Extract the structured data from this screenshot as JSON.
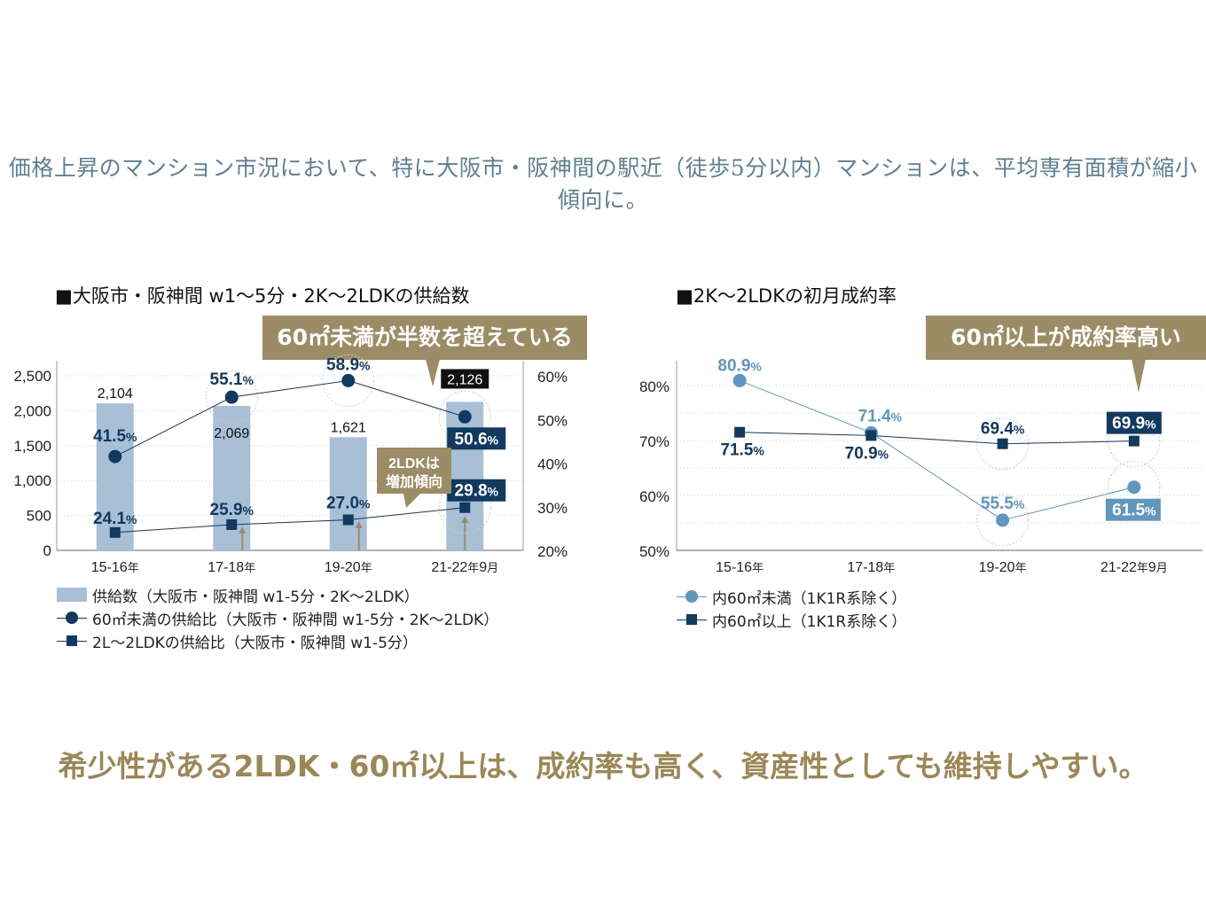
{
  "headline": "価格上昇のマンション市況において、特に大阪市・阪神間の駅近（徒歩5分以内）マンションは、平均専有面積が縮小傾向に。",
  "conclusion": "希少性がある2LDK・60㎡以上は、成約率も高く、資産性としても維持しやすい。",
  "colors": {
    "gold": "#9c8c66",
    "navy": "#12395f",
    "light_blue": "#5f97bf",
    "bar": "#a8bfd6",
    "headline": "#5e7f93"
  },
  "chart1": {
    "title": "■大阪市・阪神間 w1〜5分・2K〜2LDKの供給数",
    "callout": "60㎡未満が半数を超えている",
    "callout2": [
      "2LDKは",
      "増加傾向"
    ],
    "legend": [
      "供給数（大阪市・阪神間 w1-5分・2K〜2LDK）",
      "60㎡未満の供給比（大阪市・阪神間 w1-5分・2K〜2LDK）",
      "2L〜2LDKの供給比（大阪市・阪神間 w1-5分）"
    ]
  },
  "chart2": {
    "title": "■2K〜2LDKの初月成約率",
    "callout": "60㎡以上が成約率高い",
    "legend": [
      "内60㎡未満（1K1R系除く）",
      "内60㎡以上（1K1R系除く）"
    ]
  },
  "chart_data": [
    {
      "type": "bar",
      "categories": [
        "15-16年",
        "17-18年",
        "19-20年",
        "21-22年9月"
      ],
      "series": [
        {
          "name": "供給数（大阪市・阪神間 w1-5分・2K〜2LDK）",
          "axis": "left",
          "values": [
            2104,
            2069,
            1621,
            2126
          ],
          "labels": [
            "2,104",
            "2,069",
            "1,621",
            "2,126"
          ]
        },
        {
          "name": "60㎡未満の供給比（大阪市・阪神間 w1-5分・2K〜2LDK）",
          "type": "line",
          "axis": "right",
          "values": [
            41.5,
            55.1,
            58.9,
            50.6
          ]
        },
        {
          "name": "2L〜2LDKの供給比（大阪市・阪神間 w1-5分）",
          "type": "line",
          "axis": "right",
          "values": [
            24.1,
            25.9,
            27.0,
            29.8
          ]
        }
      ],
      "ylim_left": [
        0,
        2500
      ],
      "yticks_left": [
        "0",
        "500",
        "1,000",
        "1,500",
        "2,000",
        "2,500"
      ],
      "ylim_right": [
        20,
        60
      ],
      "yticks_right": [
        "20%",
        "30%",
        "40%",
        "50%",
        "60%"
      ],
      "grid": true,
      "legend_position": "bottom-left"
    },
    {
      "type": "line",
      "categories": [
        "15-16年",
        "17-18年",
        "19-20年",
        "21-22年9月"
      ],
      "series": [
        {
          "name": "内60㎡未満（1K1R系除く）",
          "values": [
            80.9,
            71.4,
            55.5,
            61.5
          ]
        },
        {
          "name": "内60㎡以上（1K1R系除く）",
          "values": [
            71.5,
            70.9,
            69.4,
            69.9
          ]
        }
      ],
      "ylim": [
        50,
        85
      ],
      "yticks": [
        "50%",
        "60%",
        "70%",
        "80%"
      ],
      "grid": true,
      "legend_position": "bottom-left"
    }
  ]
}
